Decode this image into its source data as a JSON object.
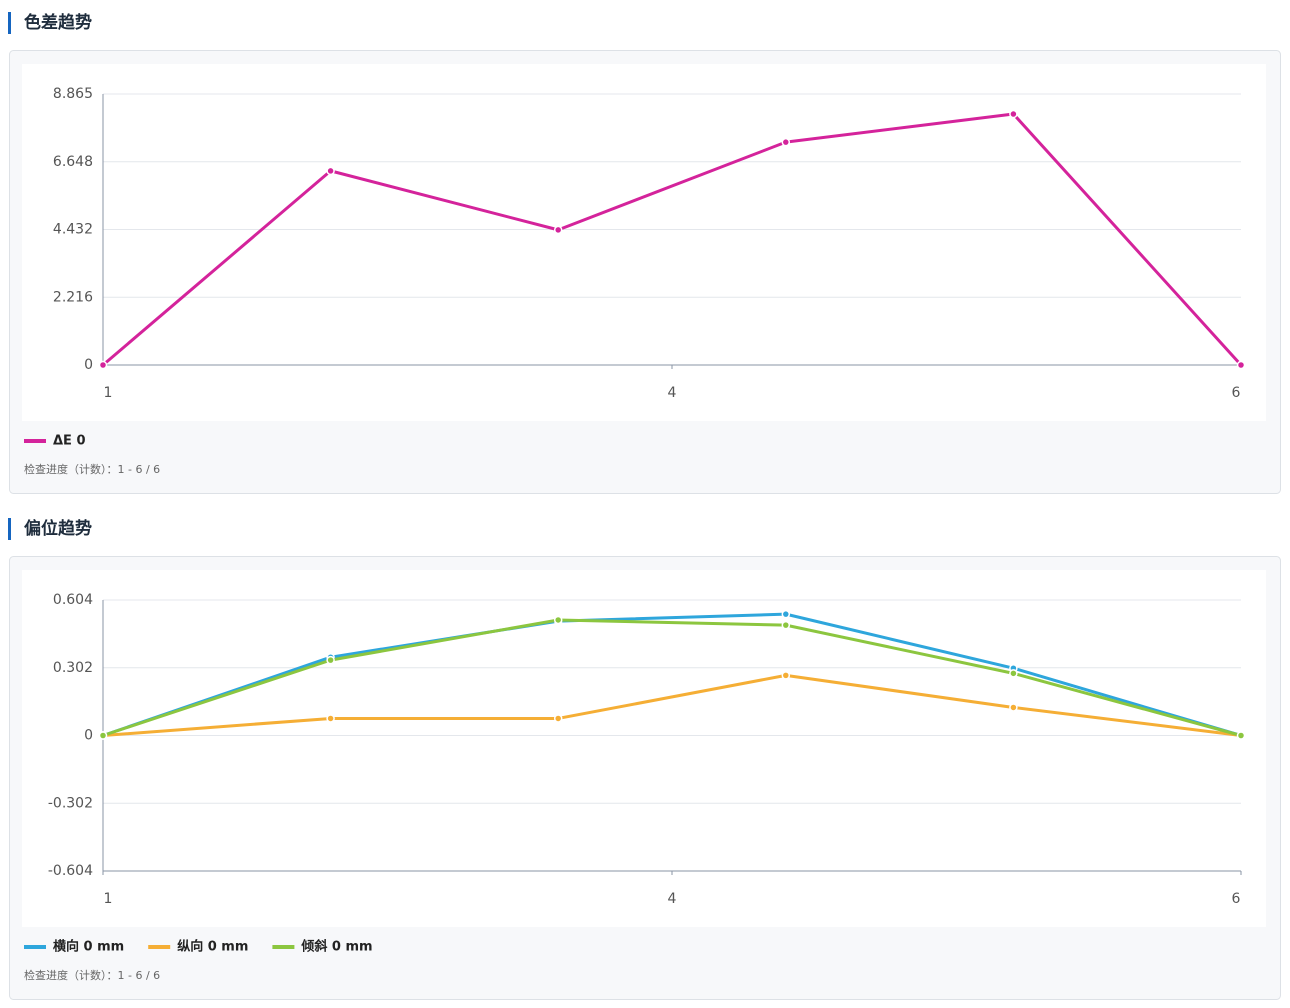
{
  "chart_data": [
    {
      "type": "line",
      "title": "色差趋势",
      "x": [
        1,
        2,
        3,
        4,
        5,
        6
      ],
      "xlim": [
        1,
        6
      ],
      "xticks": [
        1,
        {
          "value": 3.5,
          "label": "4"
        },
        6
      ],
      "ylim": [
        0,
        8.865
      ],
      "yticks": [
        0,
        2.216,
        4.432,
        6.648,
        8.865
      ],
      "grid": true,
      "series": [
        {
          "name": "ΔE 0",
          "color": "#d4239b",
          "values": [
            0,
            6.35,
            4.42,
            7.29,
            8.21,
            0
          ]
        }
      ],
      "note": "检查进度（计数）：1 - 6 / 6"
    },
    {
      "type": "line",
      "title": "偏位趋势",
      "x": [
        1,
        2,
        3,
        4,
        5,
        6
      ],
      "xlim": [
        1,
        6
      ],
      "xticks": [
        1,
        {
          "value": 3.5,
          "label": "4"
        },
        6
      ],
      "ylim": [
        -0.604,
        0.604
      ],
      "yticks": [
        -0.604,
        -0.302,
        0,
        0.302,
        0.604
      ],
      "grid": true,
      "series": [
        {
          "name": "横向 0 mm",
          "color": "#2ea6dc",
          "values": [
            0,
            0.349,
            0.51,
            0.541,
            0.3,
            0
          ]
        },
        {
          "name": "纵向 0 mm",
          "color": "#f5ae35",
          "values": [
            0,
            0.076,
            0.076,
            0.268,
            0.125,
            0
          ]
        },
        {
          "name": "倾斜 0 mm",
          "color": "#8cc63f",
          "values": [
            0,
            0.336,
            0.515,
            0.492,
            0.277,
            0
          ]
        }
      ],
      "note": "检查进度（计数）：1 - 6 / 6"
    }
  ]
}
